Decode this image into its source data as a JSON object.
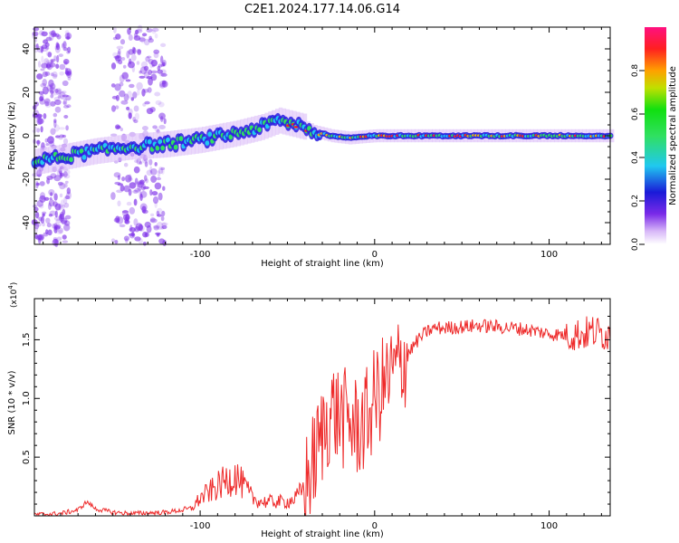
{
  "title": "C2E1.2024.177.14.06.G14",
  "colors": {
    "snr_line": "#ee2a2a",
    "track_core": "#30e060",
    "track_edge": "#2a1ee0",
    "scatter": "#7a2ae8",
    "background": "#ffffff"
  },
  "chart_data": [
    {
      "type": "heatmap",
      "name": "spectrogram",
      "xlabel": "Height of straight line (km)",
      "ylabel": "Frequency (Hz)",
      "xlim": [
        -195,
        135
      ],
      "ylim": [
        -50,
        50
      ],
      "xticks": [
        -100,
        0,
        100
      ],
      "xtick_labels": [
        "-100",
        "0",
        "100"
      ],
      "yticks": [
        -40,
        -20,
        0,
        20,
        40
      ],
      "ytick_labels": [
        "-40",
        "-20",
        "0",
        "20",
        "40"
      ],
      "colorbar": {
        "label": "Normalized spectral amplitude",
        "range": [
          0,
          1
        ],
        "ticks": [
          0,
          0.2,
          0.4,
          0.6,
          0.8
        ],
        "tick_labels": [
          "0.0",
          "0.2",
          "0.4",
          "0.6",
          "0.8"
        ],
        "colormap": "rainbow (white-violet-blue-cyan-green-yellow-red-magenta)"
      },
      "track": {
        "x": [
          -195,
          -180,
          -160,
          -140,
          -120,
          -100,
          -80,
          -65,
          -55,
          -45,
          -40,
          -35,
          -25,
          -15,
          0,
          20,
          60,
          100,
          135
        ],
        "y": [
          -12,
          -10,
          -7,
          -5,
          -4,
          -2,
          1,
          4,
          7,
          5,
          4,
          2,
          0,
          -1,
          0,
          0,
          0,
          0,
          0
        ]
      },
      "scatter_bands": [
        {
          "x_from": -195,
          "x_to": -175
        },
        {
          "x_from": -150,
          "x_to": -120
        }
      ]
    },
    {
      "type": "line",
      "name": "snr",
      "xlabel": "Height of straight line (km)",
      "ylabel": "SNR (10 * v/v)",
      "y_multiplier_label": "(x10",
      "y_multiplier_exp": "4",
      "y_multiplier_close": ")",
      "xlim": [
        -195,
        135
      ],
      "ylim": [
        0,
        1.85
      ],
      "xticks": [
        -100,
        0,
        100
      ],
      "xtick_labels": [
        "-100",
        "0",
        "100"
      ],
      "yticks": [
        0.5,
        1.0,
        1.5
      ],
      "ytick_labels": [
        "0.5",
        "1.0",
        "1.5"
      ],
      "series": [
        {
          "x": [
            -195,
            -180,
            -170,
            -165,
            -160,
            -150,
            -140,
            -120,
            -105,
            -100,
            -95,
            -90,
            -85,
            -80,
            -75,
            -70,
            -65,
            -60,
            -50,
            -45,
            -40,
            -35,
            -30,
            -25,
            -20,
            -15,
            -10,
            -5,
            0,
            5,
            10,
            15,
            20,
            25,
            30,
            35,
            40,
            50,
            60,
            70,
            80,
            90,
            100,
            110,
            120,
            125,
            130,
            135
          ],
          "y": [
            0.01,
            0.02,
            0.05,
            0.12,
            0.06,
            0.03,
            0.02,
            0.03,
            0.06,
            0.15,
            0.2,
            0.25,
            0.3,
            0.35,
            0.25,
            0.15,
            0.12,
            0.12,
            0.12,
            0.15,
            0.25,
            0.45,
            0.7,
            0.9,
            0.85,
            0.8,
            0.75,
            0.8,
            1.0,
            1.1,
            1.2,
            1.3,
            1.4,
            1.5,
            1.57,
            1.6,
            1.6,
            1.61,
            1.62,
            1.61,
            1.6,
            1.58,
            1.55,
            1.54,
            1.55,
            1.57,
            1.55,
            1.55
          ]
        }
      ]
    }
  ]
}
